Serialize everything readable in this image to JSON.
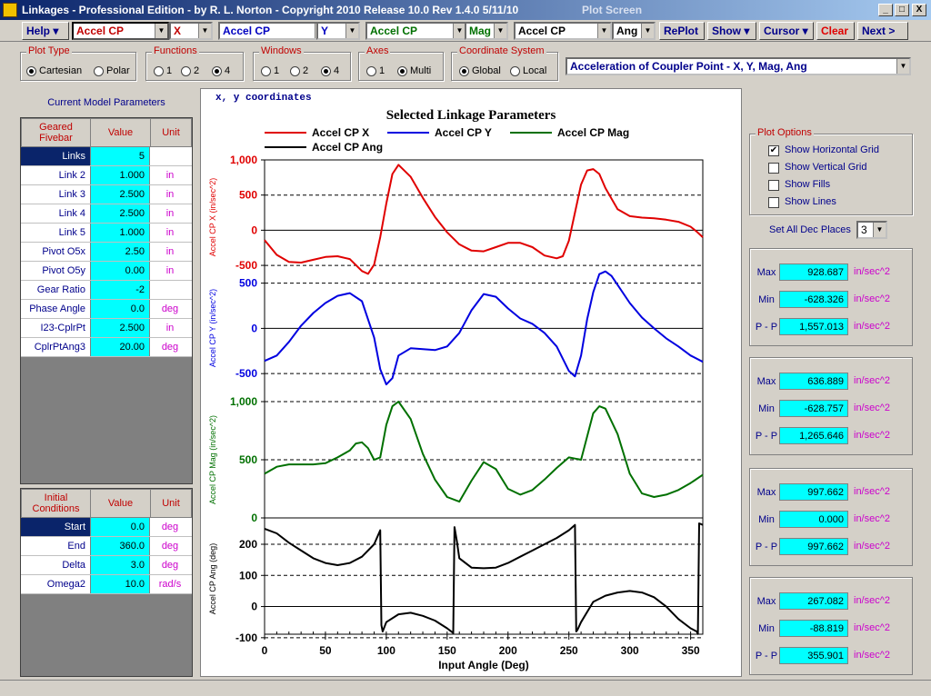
{
  "window": {
    "title": "Linkages - Professional Edition - by R. L. Norton - Copyright 2010   Release 10.0   Rev 1.4.0   5/11/10",
    "screen": "Plot Screen",
    "min": "_",
    "max": "□",
    "close": "X"
  },
  "toolbar": {
    "help": "Help",
    "combos": [
      {
        "value": "Accel CP",
        "color": "#c00000"
      },
      {
        "value": "X",
        "color": "#c00000"
      },
      {
        "value": "Accel CP",
        "color": "#0000c0"
      },
      {
        "value": "Y",
        "color": "#0000c0"
      },
      {
        "value": "Accel CP",
        "color": "#007000"
      },
      {
        "value": "Mag",
        "color": "#007000"
      },
      {
        "value": "Accel CP",
        "color": "#000000"
      },
      {
        "value": "Ang",
        "color": "#000000"
      }
    ],
    "replot": "RePlot",
    "show": "Show",
    "cursor": "Cursor",
    "clear": "Clear",
    "next": "Next >"
  },
  "options": {
    "plot_type": {
      "label": "Plot Type",
      "opts": [
        "Cartesian",
        "Polar"
      ],
      "selected": "Cartesian"
    },
    "functions": {
      "label": "Functions",
      "opts": [
        "1",
        "2",
        "4"
      ],
      "selected": "4"
    },
    "windows": {
      "label": "Windows",
      "opts": [
        "1",
        "2",
        "4"
      ],
      "selected": "4"
    },
    "axes": {
      "label": "Axes",
      "opts": [
        "1",
        "Multi"
      ],
      "selected": "Multi"
    },
    "coord": {
      "label": "Coordinate System",
      "opts": [
        "Global",
        "Local"
      ],
      "selected": "Global"
    },
    "parameter_select": "Acceleration of Coupler Point  -  X, Y, Mag, Ang"
  },
  "left": {
    "title": "Current Model Parameters",
    "model_header": {
      "name": "Geared Fivebar",
      "value": "Value",
      "unit": "Unit"
    },
    "params": [
      {
        "name": "Links",
        "value": "5",
        "unit": ""
      },
      {
        "name": "Link 2",
        "value": "1.000",
        "unit": "in"
      },
      {
        "name": "Link 3",
        "value": "2.500",
        "unit": "in"
      },
      {
        "name": "Link 4",
        "value": "2.500",
        "unit": "in"
      },
      {
        "name": "Link 5",
        "value": "1.000",
        "unit": "in"
      },
      {
        "name": "Pivot O5x",
        "value": "2.50",
        "unit": "in"
      },
      {
        "name": "Pivot O5y",
        "value": "0.00",
        "unit": "in"
      },
      {
        "name": "Gear Ratio",
        "value": "-2",
        "unit": ""
      },
      {
        "name": "Phase Angle",
        "value": "0.0",
        "unit": "deg"
      },
      {
        "name": "I23-CplrPt",
        "value": "2.500",
        "unit": "in"
      },
      {
        "name": "CplrPtAng3",
        "value": "20.00",
        "unit": "deg"
      }
    ],
    "init_header": {
      "name": "Initial Conditions",
      "value": "Value",
      "unit": "Unit"
    },
    "init": [
      {
        "name": "Start",
        "value": "0.0",
        "unit": "deg"
      },
      {
        "name": "End",
        "value": "360.0",
        "unit": "deg"
      },
      {
        "name": "Delta",
        "value": "3.0",
        "unit": "deg"
      },
      {
        "name": "Omega2",
        "value": "10.0",
        "unit": "rad/s"
      }
    ]
  },
  "plot": {
    "coord_label": "x, y  coordinates",
    "title": "Selected Linkage Parameters",
    "xlabel": "Input Angle (Deg)"
  },
  "chart_data": {
    "type": "line",
    "title": "Selected Linkage Parameters",
    "xlabel": "Input Angle (Deg)",
    "xlim": [
      0,
      360
    ],
    "xticks": [
      0,
      50,
      100,
      150,
      200,
      250,
      300,
      350
    ],
    "series": [
      {
        "name": "Accel CP X",
        "ylabel": "Accel CP X (in/sec^2)",
        "color": "#e00000",
        "ylim": [
          -628.326,
          1000
        ],
        "ticks": [
          {
            "v": 1000,
            "t": "1,000"
          },
          {
            "v": 500,
            "t": "500"
          },
          {
            "v": 0,
            "t": "0"
          },
          {
            "v": -500,
            "t": "-500"
          }
        ],
        "x": [
          0,
          10,
          20,
          30,
          40,
          50,
          60,
          70,
          80,
          85,
          90,
          95,
          100,
          105,
          110,
          120,
          130,
          140,
          150,
          160,
          170,
          180,
          190,
          200,
          210,
          220,
          230,
          240,
          245,
          250,
          255,
          260,
          265,
          270,
          275,
          280,
          290,
          300,
          310,
          320,
          330,
          340,
          350,
          355,
          360
        ],
        "y": [
          -140,
          -350,
          -450,
          -460,
          -420,
          -380,
          -370,
          -410,
          -580,
          -620,
          -490,
          -100,
          380,
          800,
          930,
          760,
          460,
          190,
          -30,
          -200,
          -290,
          -300,
          -240,
          -180,
          -180,
          -240,
          -360,
          -400,
          -370,
          -150,
          250,
          650,
          850,
          870,
          800,
          600,
          300,
          200,
          180,
          170,
          150,
          120,
          50,
          -20,
          -100
        ]
      },
      {
        "name": "Accel CP Y",
        "ylabel": "Accel CP Y (in/sec^2)",
        "color": "#0000e0",
        "ylim": [
          -628.757,
          636.889
        ],
        "ticks": [
          {
            "v": 500,
            "t": "500"
          },
          {
            "v": 0,
            "t": "0"
          },
          {
            "v": -500,
            "t": "-500"
          }
        ],
        "x": [
          0,
          10,
          20,
          30,
          40,
          50,
          60,
          70,
          80,
          90,
          95,
          100,
          105,
          110,
          120,
          130,
          140,
          150,
          160,
          170,
          180,
          190,
          200,
          210,
          220,
          230,
          240,
          250,
          255,
          260,
          265,
          270,
          275,
          280,
          285,
          290,
          300,
          310,
          320,
          330,
          340,
          350,
          360
        ],
        "y": [
          -360,
          -300,
          -150,
          30,
          170,
          280,
          360,
          390,
          300,
          -100,
          -450,
          -620,
          -550,
          -300,
          -220,
          -230,
          -240,
          -200,
          -50,
          200,
          380,
          350,
          220,
          110,
          50,
          -50,
          -200,
          -470,
          -530,
          -300,
          100,
          400,
          600,
          630,
          580,
          480,
          280,
          120,
          0,
          -110,
          -200,
          -300,
          -370
        ]
      },
      {
        "name": "Accel CP Mag",
        "ylabel": "Accel CP Mag (in/sec^2)",
        "color": "#007000",
        "ylim": [
          0,
          1000
        ],
        "ticks": [
          {
            "v": 1000,
            "t": "1,000"
          },
          {
            "v": 500,
            "t": "500"
          },
          {
            "v": 0,
            "t": "0"
          }
        ],
        "x": [
          0,
          10,
          20,
          30,
          40,
          50,
          60,
          70,
          75,
          80,
          85,
          90,
          95,
          100,
          105,
          110,
          120,
          130,
          140,
          150,
          160,
          170,
          180,
          190,
          200,
          210,
          220,
          230,
          240,
          250,
          255,
          260,
          265,
          270,
          275,
          280,
          290,
          300,
          310,
          320,
          330,
          340,
          350,
          360
        ],
        "y": [
          380,
          440,
          460,
          460,
          460,
          470,
          520,
          580,
          640,
          650,
          600,
          500,
          520,
          800,
          960,
          1000,
          850,
          550,
          330,
          180,
          140,
          320,
          480,
          420,
          250,
          200,
          240,
          330,
          430,
          520,
          510,
          500,
          700,
          900,
          960,
          940,
          720,
          380,
          210,
          180,
          200,
          240,
          300,
          370
        ]
      },
      {
        "name": "Accel CP Ang",
        "ylabel": "Accel CP Ang (deg)",
        "color": "#000000",
        "ylim": [
          -88.819,
          267.082
        ],
        "ticks": [
          {
            "v": 200,
            "t": "200"
          },
          {
            "v": 100,
            "t": "100"
          },
          {
            "v": 0,
            "t": "0"
          },
          {
            "v": -100,
            "t": "-100"
          }
        ],
        "x": [
          0,
          10,
          20,
          30,
          40,
          50,
          60,
          70,
          80,
          90,
          95,
          96,
          97,
          100,
          110,
          120,
          130,
          140,
          150,
          155,
          156,
          158,
          160,
          170,
          180,
          190,
          200,
          210,
          220,
          230,
          240,
          250,
          255,
          256,
          257,
          260,
          270,
          280,
          290,
          300,
          310,
          320,
          330,
          340,
          350,
          355,
          356,
          357,
          360
        ],
        "y": [
          250,
          235,
          205,
          180,
          155,
          140,
          133,
          140,
          160,
          200,
          245,
          -60,
          -80,
          -50,
          -25,
          -20,
          -30,
          -45,
          -70,
          -85,
          255,
          210,
          155,
          125,
          123,
          125,
          140,
          160,
          180,
          200,
          220,
          245,
          262,
          -80,
          -75,
          -50,
          15,
          35,
          45,
          50,
          45,
          30,
          0,
          -40,
          -70,
          -80,
          -88,
          267,
          262
        ]
      }
    ]
  },
  "right": {
    "plot_options_label": "Plot Options",
    "checks": [
      {
        "label": "Show Horizontal Grid",
        "checked": true
      },
      {
        "label": "Show Vertical Grid",
        "checked": false
      },
      {
        "label": "Show Fills",
        "checked": false
      },
      {
        "label": "Show Lines",
        "checked": false
      }
    ],
    "dec_label": "Set All Dec Places",
    "dec_value": "3",
    "stats": [
      {
        "max": "928.687",
        "min": "-628.326",
        "pp": "1,557.013",
        "unit": "in/sec^2"
      },
      {
        "max": "636.889",
        "min": "-628.757",
        "pp": "1,265.646",
        "unit": "in/sec^2"
      },
      {
        "max": "997.662",
        "min": "0.000",
        "pp": "997.662",
        "unit": "in/sec^2"
      },
      {
        "max": "267.082",
        "min": "-88.819",
        "pp": "355.901",
        "unit": "in/sec^2"
      }
    ],
    "stat_labels": {
      "max": "Max",
      "min": "Min",
      "pp": "P - P"
    }
  }
}
